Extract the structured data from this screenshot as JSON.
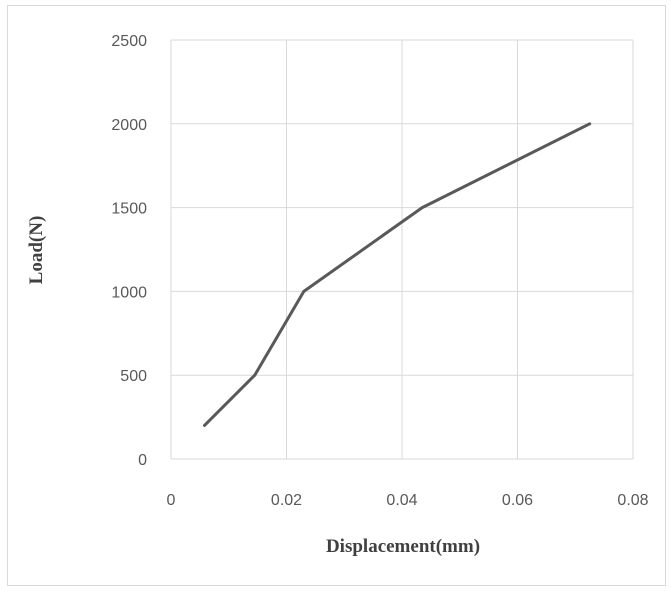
{
  "chart_data": {
    "type": "line",
    "xlabel": "Displacement(mm)",
    "ylabel": "Load(N)",
    "xlim": [
      0,
      0.08
    ],
    "ylim": [
      0,
      2500
    ],
    "x_ticks": [
      "0",
      "0.02",
      "0.04",
      "0.06",
      "0.08"
    ],
    "y_ticks": [
      "0",
      "500",
      "1000",
      "1500",
      "2000",
      "2500"
    ],
    "grid": true,
    "series": [
      {
        "x": [
          0.0058,
          0.0145,
          0.023,
          0.0435,
          0.0725
        ],
        "y": [
          200,
          500,
          1000,
          1500,
          2000
        ]
      }
    ],
    "colors": {
      "series": "#595959",
      "grid": "#d9d9d9"
    }
  }
}
